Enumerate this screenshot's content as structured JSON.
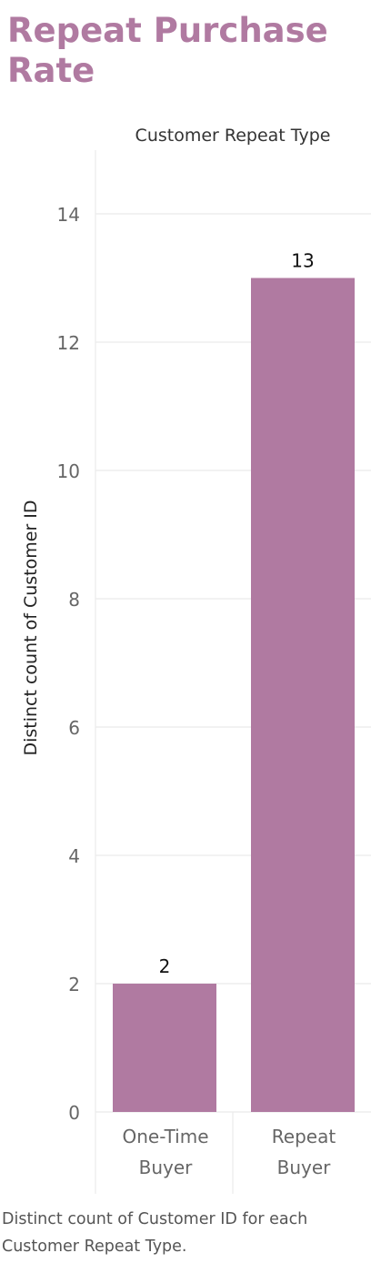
{
  "title": "Repeat Purchase Rate",
  "caption": "Distinct count of Customer ID for each Customer Repeat Type.",
  "colors": {
    "title": "#b07aa1",
    "bar": "#b07aa1",
    "grid": "#ebebeb",
    "axis_text": "#666666"
  },
  "chart_data": {
    "type": "bar",
    "header": "Customer Repeat Type",
    "ylabel": "Distinct count of Customer ID",
    "xlabel": "",
    "categories": [
      [
        "One-Time",
        "Buyer"
      ],
      [
        "Repeat",
        "Buyer"
      ]
    ],
    "values": [
      2,
      13
    ],
    "data_labels": [
      "2",
      "13"
    ],
    "ylim": [
      0,
      15
    ],
    "yticks": [
      0,
      2,
      4,
      6,
      8,
      10,
      12,
      14
    ],
    "grid": true,
    "legend": "none"
  }
}
